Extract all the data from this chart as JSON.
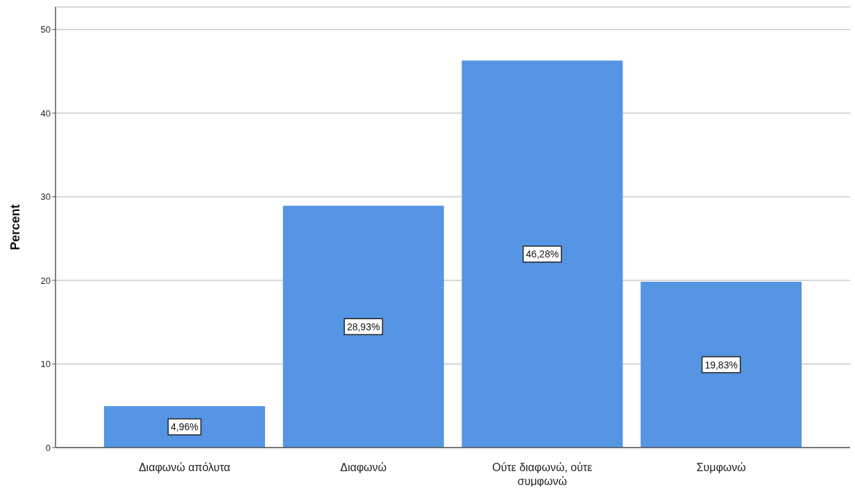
{
  "chart_data": {
    "type": "bar",
    "ylabel": "Percent",
    "categories": [
      "Διαφωνώ απόλυτα",
      "Διαφωνώ",
      "Ούτε διαφωνώ, ούτε συμφωνώ",
      "Συμφωνώ"
    ],
    "values": [
      4.96,
      28.93,
      46.28,
      19.83
    ],
    "value_labels": [
      "4,96%",
      "28,93%",
      "46,28%",
      "19,83%"
    ],
    "color": "#5595e3",
    "ylim": [
      0,
      52.7
    ],
    "yticks": [
      0,
      10,
      20,
      30,
      40,
      50
    ],
    "grid": "y"
  }
}
